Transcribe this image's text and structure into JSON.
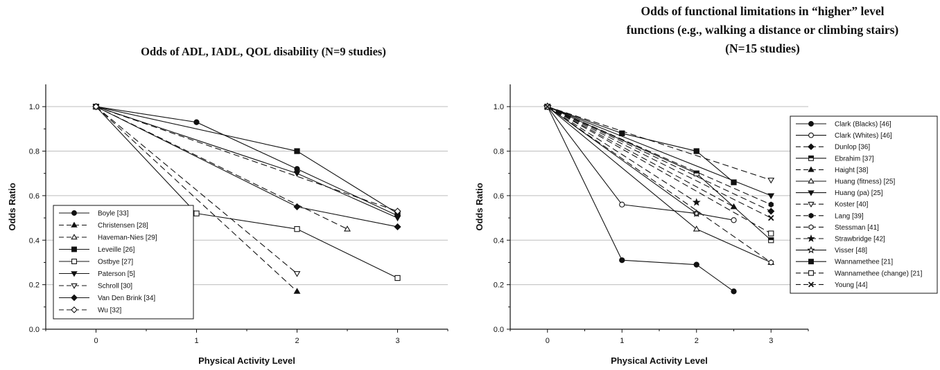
{
  "chart_data": [
    {
      "type": "line",
      "title": "Odds of ADL, IADL, QOL disability  (N=9 studies)",
      "xlabel": "Physical Activity Level",
      "ylabel": "Odds Ratio",
      "xlim": [
        -0.5,
        3.5
      ],
      "ylim": [
        0.0,
        1.1
      ],
      "xticks": [
        0,
        1,
        2,
        3
      ],
      "yticks": [
        0.0,
        0.2,
        0.4,
        0.6,
        0.8,
        1.0
      ],
      "grid": true,
      "legend_position": "bottom-left",
      "series": [
        {
          "name": "Boyle [33]",
          "marker": "circle-filled",
          "dash": "solid",
          "x": [
            0,
            1,
            2,
            3
          ],
          "y": [
            1.0,
            0.93,
            0.72,
            0.51
          ]
        },
        {
          "name": "Christensen [28]",
          "marker": "triangle-filled",
          "dash": "dashed",
          "x": [
            0,
            2
          ],
          "y": [
            1.0,
            0.17
          ]
        },
        {
          "name": "Haveman-Nies [29]",
          "marker": "triangle-open",
          "dash": "dashed",
          "x": [
            0,
            2.5
          ],
          "y": [
            1.0,
            0.45
          ]
        },
        {
          "name": "Leveille [26]",
          "marker": "square-filled",
          "dash": "solid",
          "x": [
            0,
            2,
            3
          ],
          "y": [
            1.0,
            0.8,
            0.52
          ]
        },
        {
          "name": "Ostbye [27]",
          "marker": "square-open",
          "dash": "solid",
          "x": [
            0,
            1,
            2,
            3
          ],
          "y": [
            1.0,
            0.52,
            0.45,
            0.23
          ]
        },
        {
          "name": "Paterson [5]",
          "marker": "triangle-down-filled",
          "dash": "solid",
          "x": [
            0,
            2,
            3
          ],
          "y": [
            1.0,
            0.7,
            0.5
          ]
        },
        {
          "name": "Schroll [30]",
          "marker": "triangle-down-open",
          "dash": "dashed",
          "x": [
            0,
            2
          ],
          "y": [
            1.0,
            0.25
          ]
        },
        {
          "name": "Van Den Brink [34]",
          "marker": "diamond-filled",
          "dash": "solid",
          "x": [
            0,
            2,
            3
          ],
          "y": [
            1.0,
            0.55,
            0.46
          ]
        },
        {
          "name": "Wu [32]",
          "marker": "diamond-open",
          "dash": "dashed",
          "x": [
            0,
            3
          ],
          "y": [
            1.0,
            0.53
          ]
        }
      ]
    },
    {
      "type": "line",
      "title": "Odds of functional limitations in “higher” level functions (e.g., walking a distance or climbing stairs) (N=15 studies)",
      "title_lines": [
        "Odds of functional limitations in “higher” level",
        "functions (e.g., walking a distance or climbing stairs)",
        "(N=15 studies)"
      ],
      "xlabel": "Physical Activity Level",
      "ylabel": "Odds Ratio",
      "xlim": [
        -0.5,
        3.5
      ],
      "ylim": [
        0.0,
        1.1
      ],
      "xticks": [
        0,
        1,
        2,
        3
      ],
      "yticks": [
        0.0,
        0.2,
        0.4,
        0.6,
        0.8,
        1.0
      ],
      "grid": true,
      "legend_position": "outside-right",
      "series": [
        {
          "name": "Clark (Blacks) [46]",
          "marker": "circle-filled",
          "dash": "solid",
          "x": [
            0,
            1,
            2,
            2.5
          ],
          "y": [
            1.0,
            0.31,
            0.29,
            0.17
          ]
        },
        {
          "name": "Clark (Whites) [46]",
          "marker": "circle-open",
          "dash": "solid",
          "x": [
            0,
            1,
            2,
            2.5
          ],
          "y": [
            1.0,
            0.56,
            0.52,
            0.49
          ]
        },
        {
          "name": "Dunlop [36]",
          "marker": "diamond-filled",
          "dash": "dashed",
          "x": [
            0,
            3
          ],
          "y": [
            1.0,
            0.53
          ]
        },
        {
          "name": "Ebrahim [37]",
          "marker": "square-half",
          "dash": "solid",
          "x": [
            0,
            2,
            3
          ],
          "y": [
            1.0,
            0.7,
            0.4
          ]
        },
        {
          "name": "Haight [38]",
          "marker": "triangle-filled",
          "dash": "dashed",
          "x": [
            0,
            2.5
          ],
          "y": [
            1.0,
            0.55
          ]
        },
        {
          "name": "Huang (fitness) [25]",
          "marker": "triangle-open",
          "dash": "solid",
          "x": [
            0,
            2,
            3
          ],
          "y": [
            1.0,
            0.45,
            0.3
          ]
        },
        {
          "name": "Huang (pa) [25]",
          "marker": "triangle-down-filled",
          "dash": "solid",
          "x": [
            0,
            3
          ],
          "y": [
            1.0,
            0.6
          ]
        },
        {
          "name": "Koster [40]",
          "marker": "triangle-down-open",
          "dash": "dashed",
          "x": [
            0,
            3
          ],
          "y": [
            1.0,
            0.67
          ]
        },
        {
          "name": "Lang [39]",
          "marker": "hexagon-filled",
          "dash": "dashed",
          "x": [
            0,
            3
          ],
          "y": [
            1.0,
            0.56
          ]
        },
        {
          "name": "Stessman [41]",
          "marker": "hexagon-open",
          "dash": "dashed",
          "x": [
            0,
            3
          ],
          "y": [
            1.0,
            0.3
          ]
        },
        {
          "name": "Strawbridge [42]",
          "marker": "star-filled",
          "dash": "dashed",
          "x": [
            0,
            2
          ],
          "y": [
            1.0,
            0.57
          ]
        },
        {
          "name": "Visser [48]",
          "marker": "star-open",
          "dash": "solid",
          "x": [
            0,
            2
          ],
          "y": [
            1.0,
            0.52
          ]
        },
        {
          "name": "Wannamethee [21]",
          "marker": "square-filled",
          "dash": "solid",
          "x": [
            0,
            1,
            2,
            2.5
          ],
          "y": [
            1.0,
            0.88,
            0.8,
            0.66
          ]
        },
        {
          "name": "Wannamethee (change) [21]",
          "marker": "square-open",
          "dash": "dashed",
          "x": [
            0,
            3
          ],
          "y": [
            1.0,
            0.43
          ]
        },
        {
          "name": "Young [44]",
          "marker": "x",
          "dash": "dashed",
          "x": [
            0,
            3
          ],
          "y": [
            1.0,
            0.5
          ]
        }
      ]
    }
  ]
}
